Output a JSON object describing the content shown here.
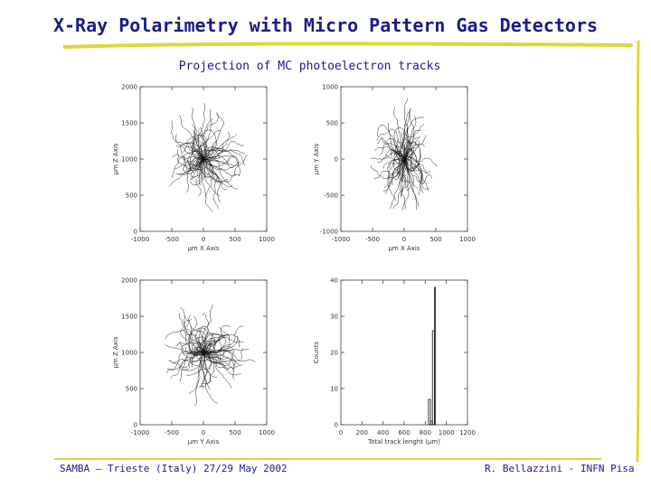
{
  "slide": {
    "title": "X-Ray Polarimetry with Micro Pattern Gas Detectors",
    "subtitle": "Projection of MC photoelectron tracks",
    "footer_left": "SAMBA – Trieste (Italy) 27/29 May 2002",
    "footer_right": "R. Bellazzini - INFN Pisa",
    "accent_color": "#1a1a8c",
    "stroke_color": "#d9d93a"
  },
  "chart_data": [
    {
      "type": "scatter",
      "name_id": "xz",
      "xlabel": "μm  X Axis",
      "ylabel": "μm  Z Axis",
      "xlim": [
        -1000,
        1000
      ],
      "ylim": [
        0,
        2000
      ],
      "xticks": [
        "-1000",
        "-500",
        "0",
        "500",
        "1000"
      ],
      "yticks": [
        "0",
        "500",
        "1000",
        "1500",
        "2000"
      ],
      "center": [
        0,
        1000
      ],
      "spread": [
        700,
        700
      ]
    },
    {
      "type": "scatter",
      "name_id": "xy",
      "xlabel": "μm  X Axis",
      "ylabel": "μm  Y Axis",
      "xlim": [
        -1000,
        1000
      ],
      "ylim": [
        -1000,
        1000
      ],
      "xticks": [
        "-1000",
        "-500",
        "0",
        "500",
        "1000"
      ],
      "yticks": [
        "-1000",
        "-500",
        "0",
        "500",
        "1000"
      ],
      "center": [
        0,
        0
      ],
      "spread": [
        550,
        800
      ]
    },
    {
      "type": "scatter",
      "name_id": "yz",
      "xlabel": "μm  Y Axis",
      "ylabel": "μm  Z Axis",
      "xlim": [
        -1000,
        1000
      ],
      "ylim": [
        0,
        2000
      ],
      "xticks": [
        "-1000",
        "-500",
        "0",
        "500",
        "1000"
      ],
      "yticks": [
        "0",
        "500",
        "1000",
        "1500",
        "2000"
      ],
      "center": [
        0,
        1000
      ],
      "spread": [
        750,
        650
      ]
    },
    {
      "type": "histogram",
      "name_id": "length",
      "xlabel": "Total track lenght (μm)",
      "ylabel": "Counts",
      "xlim": [
        0,
        1300
      ],
      "ylim": [
        0,
        40
      ],
      "xticks": [
        "0",
        "200",
        "400",
        "600",
        "800",
        "1000",
        "1200"
      ],
      "yticks": [
        "0",
        "10",
        "20",
        "30",
        "40"
      ],
      "bins": [
        {
          "x0": 900,
          "x1": 920,
          "count": 7
        },
        {
          "x0": 920,
          "x1": 940,
          "count": 1
        },
        {
          "x0": 940,
          "x1": 960,
          "count": 26
        },
        {
          "x0": 960,
          "x1": 970,
          "count": 38
        },
        {
          "x0": 970,
          "x1": 990,
          "count": 0
        }
      ]
    }
  ]
}
